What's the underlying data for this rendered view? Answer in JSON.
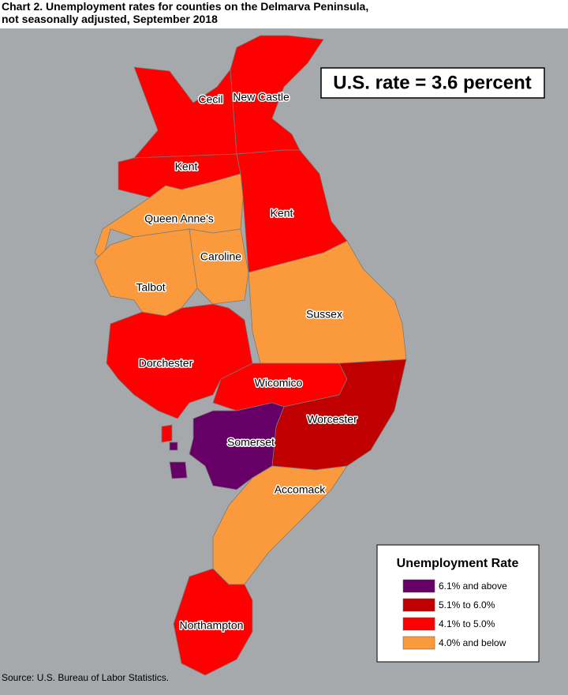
{
  "title": [
    "Chart 2. Unemployment rates for counties on the Delmarva Peninsula,",
    "not seasonally adjusted, September 2018"
  ],
  "note": "U.S. rate = 3.6 percent",
  "counties": [
    {
      "label": "Cecil",
      "color": "#ff0000"
    },
    {
      "label": "New Castle",
      "color": "#ff0000"
    },
    {
      "label": "Kent",
      "color": "#ff0000"
    },
    {
      "label": "Kent",
      "color": "#ff0000"
    },
    {
      "label": "Queen Anne's",
      "color": "#fb9a3c"
    },
    {
      "label": "Caroline",
      "color": "#fb9a3c"
    },
    {
      "label": "Talbot",
      "color": "#fb9a3c"
    },
    {
      "label": "Sussex",
      "color": "#fb9a3c"
    },
    {
      "label": "Dorchester",
      "color": "#ff0000"
    },
    {
      "label": "Wicomico",
      "color": "#ff0000"
    },
    {
      "label": "Worcester",
      "color": "#c00000"
    },
    {
      "label": "Somerset",
      "color": "#660066"
    },
    {
      "label": "Accomack",
      "color": "#fb9a3c"
    },
    {
      "label": "Northampton",
      "color": "#ff0000"
    }
  ],
  "legend": {
    "title": "Unemployment Rate",
    "items": [
      {
        "label": "6.1% and above",
        "color": "#660066"
      },
      {
        "label": "5.1% to 6.0%",
        "color": "#c00000"
      },
      {
        "label": "4.1% to 5.0%",
        "color": "#ff0000"
      },
      {
        "label": "4.0% and below",
        "color": "#fb9a3c"
      }
    ]
  },
  "source": "Source: U.S. Bureau of Labor Statistics."
}
